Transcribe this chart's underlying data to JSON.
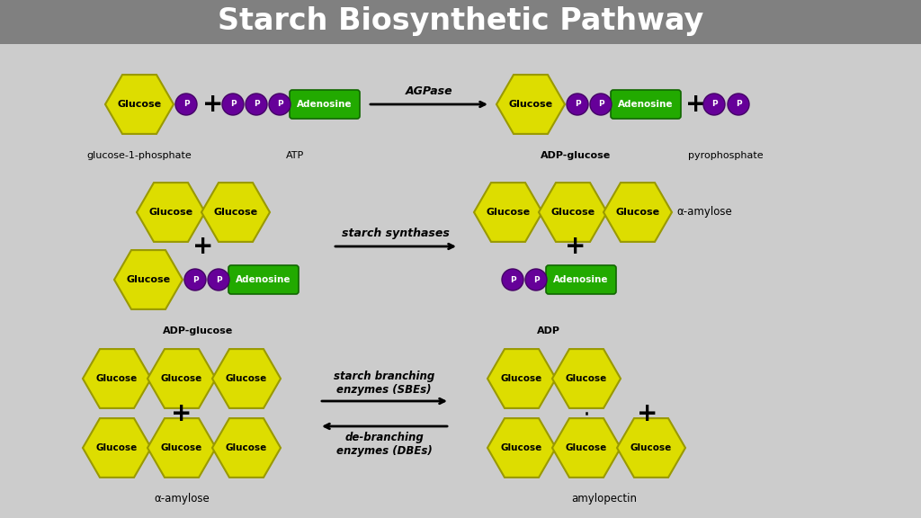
{
  "title": "Starch Biosynthetic Pathway",
  "title_bg": "#808080",
  "title_color": "white",
  "bg_color": "#cccccc",
  "yellow": "#dddd00",
  "yellow_edge": "#999900",
  "green": "#22aa00",
  "green_edge": "#116600",
  "purple": "#660099",
  "purple_edge": "#440066",
  "glucose_text": "Glucose",
  "adenosine_text": "Adenosine",
  "p_text": "P",
  "alpha_amylose": "α-amylose",
  "amylopectin": "amylopectin"
}
